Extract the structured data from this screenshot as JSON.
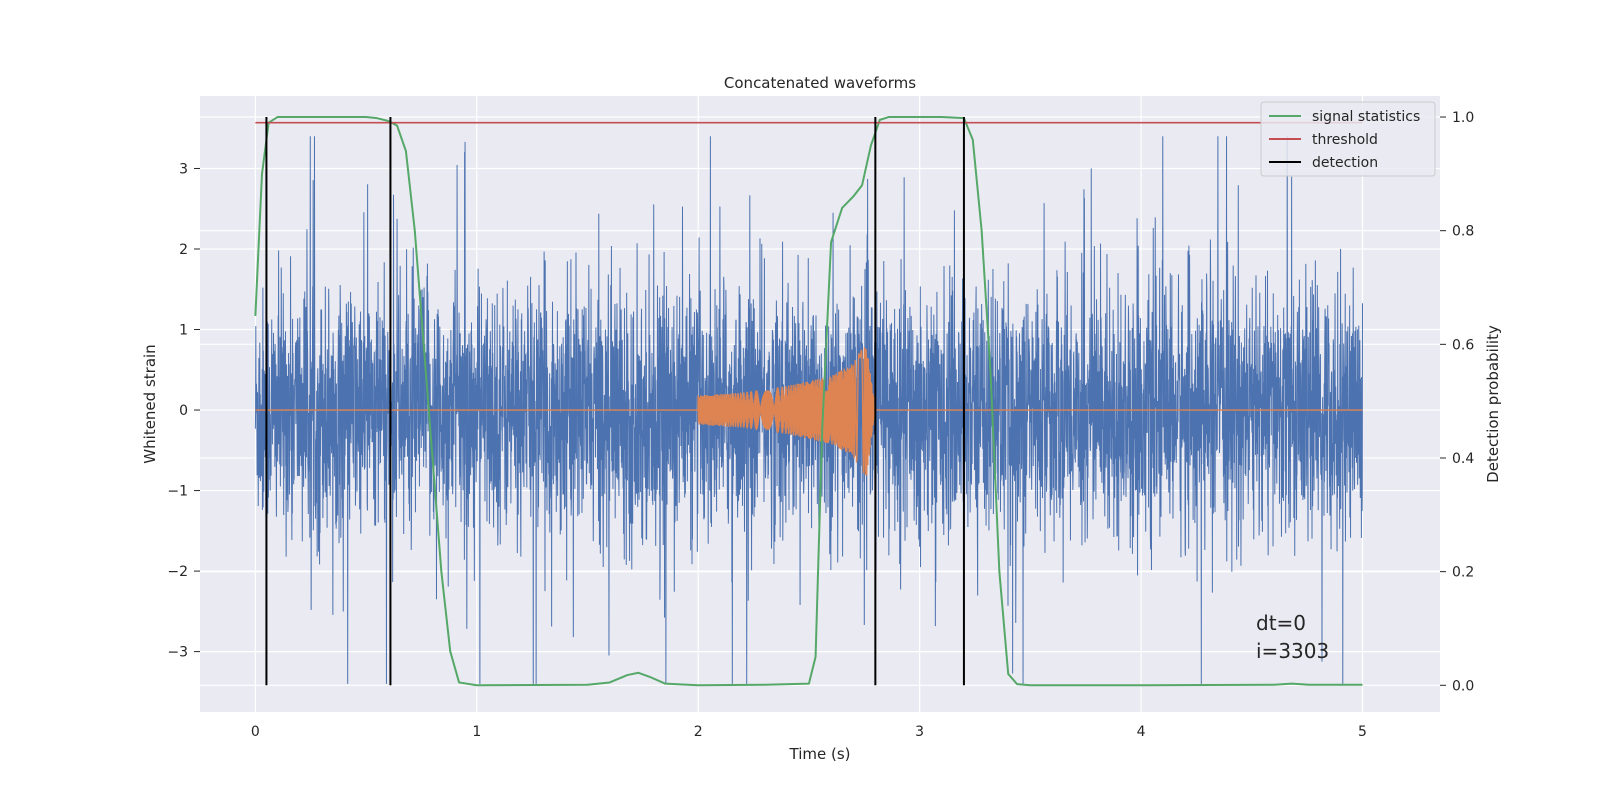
{
  "chart_data": {
    "type": "line",
    "title": "Concatenated waveforms",
    "xlabel": "Time (s)",
    "ylabel": "Whitened strain",
    "ylabel_right": "Detection probability",
    "xlim": [
      -0.25,
      5.35
    ],
    "ylim": [
      -3.75,
      3.9
    ],
    "ylim_right": [
      -0.047,
      1.037
    ],
    "xticks": [
      0,
      1,
      2,
      3,
      4,
      5
    ],
    "yticks": [
      -3,
      -2,
      -1,
      0,
      1,
      2,
      3
    ],
    "yticks_right": [
      0.0,
      0.2,
      0.4,
      0.6,
      0.8,
      1.0
    ],
    "xtick_labels": [
      "0",
      "1",
      "2",
      "3",
      "4",
      "5"
    ],
    "ytick_labels": [
      "−3",
      "−2",
      "−1",
      "0",
      "1",
      "2",
      "3"
    ],
    "ytick_right_labels": [
      "0.0",
      "0.2",
      "0.4",
      "0.6",
      "0.8",
      "1.0"
    ],
    "grid": true,
    "legend_position": "top-right",
    "legend": [
      {
        "name": "signal statistics",
        "color": "#55a868"
      },
      {
        "name": "threshold",
        "color": "#c44e52"
      },
      {
        "name": "detection",
        "color": "#000000"
      }
    ],
    "series": [
      {
        "name": "whitened strain (noise)",
        "axis": "left",
        "color": "#4c72b0",
        "x_range": [
          0,
          5
        ],
        "amplitude_core": [
          -0.6,
          0.6
        ],
        "extremes_range": [
          -3.4,
          3.4
        ]
      },
      {
        "name": "injected waveform (chirp)",
        "axis": "left",
        "color": "#dd8452",
        "x": [
          0.0,
          2.0,
          2.2,
          2.4,
          2.6,
          2.7,
          2.76,
          2.8,
          5.0
        ],
        "envelope": [
          0.0,
          0.18,
          0.22,
          0.3,
          0.42,
          0.58,
          0.85,
          0.0,
          0.0
        ]
      },
      {
        "name": "signal statistics",
        "axis": "right",
        "color": "#55a868",
        "x": [
          0.0,
          0.03,
          0.06,
          0.1,
          0.2,
          0.3,
          0.4,
          0.5,
          0.55,
          0.6,
          0.64,
          0.68,
          0.72,
          0.76,
          0.8,
          0.84,
          0.88,
          0.92,
          1.0,
          1.5,
          1.6,
          1.68,
          1.73,
          1.78,
          1.85,
          2.0,
          2.3,
          2.5,
          2.53,
          2.56,
          2.6,
          2.65,
          2.7,
          2.74,
          2.78,
          2.82,
          2.86,
          2.9,
          3.0,
          3.1,
          3.2,
          3.24,
          3.28,
          3.32,
          3.36,
          3.4,
          3.44,
          3.5,
          4.0,
          4.6,
          4.68,
          4.76,
          5.0
        ],
        "y": [
          0.65,
          0.9,
          0.99,
          1.0,
          1.0,
          1.0,
          1.0,
          1.0,
          0.998,
          0.993,
          0.985,
          0.94,
          0.8,
          0.6,
          0.4,
          0.2,
          0.06,
          0.005,
          0.0,
          0.001,
          0.005,
          0.018,
          0.022,
          0.015,
          0.003,
          0.0,
          0.001,
          0.003,
          0.05,
          0.45,
          0.78,
          0.84,
          0.86,
          0.88,
          0.95,
          0.995,
          1.0,
          1.0,
          1.0,
          1.0,
          0.998,
          0.96,
          0.8,
          0.55,
          0.2,
          0.02,
          0.002,
          0.0,
          0.0,
          0.001,
          0.003,
          0.001,
          0.001
        ]
      },
      {
        "name": "threshold",
        "axis": "right",
        "color": "#c44e52",
        "x": [
          0,
          5
        ],
        "y": [
          0.99,
          0.99
        ]
      }
    ],
    "detections": {
      "name": "detection",
      "axis": "right",
      "color": "#000000",
      "x": [
        0.05,
        0.61,
        2.8,
        3.2
      ],
      "y_range": [
        0.0,
        1.0
      ]
    },
    "annotation": {
      "lines": [
        "dt=0",
        "i=3303"
      ],
      "x": 4.5,
      "y": -2.7
    }
  }
}
